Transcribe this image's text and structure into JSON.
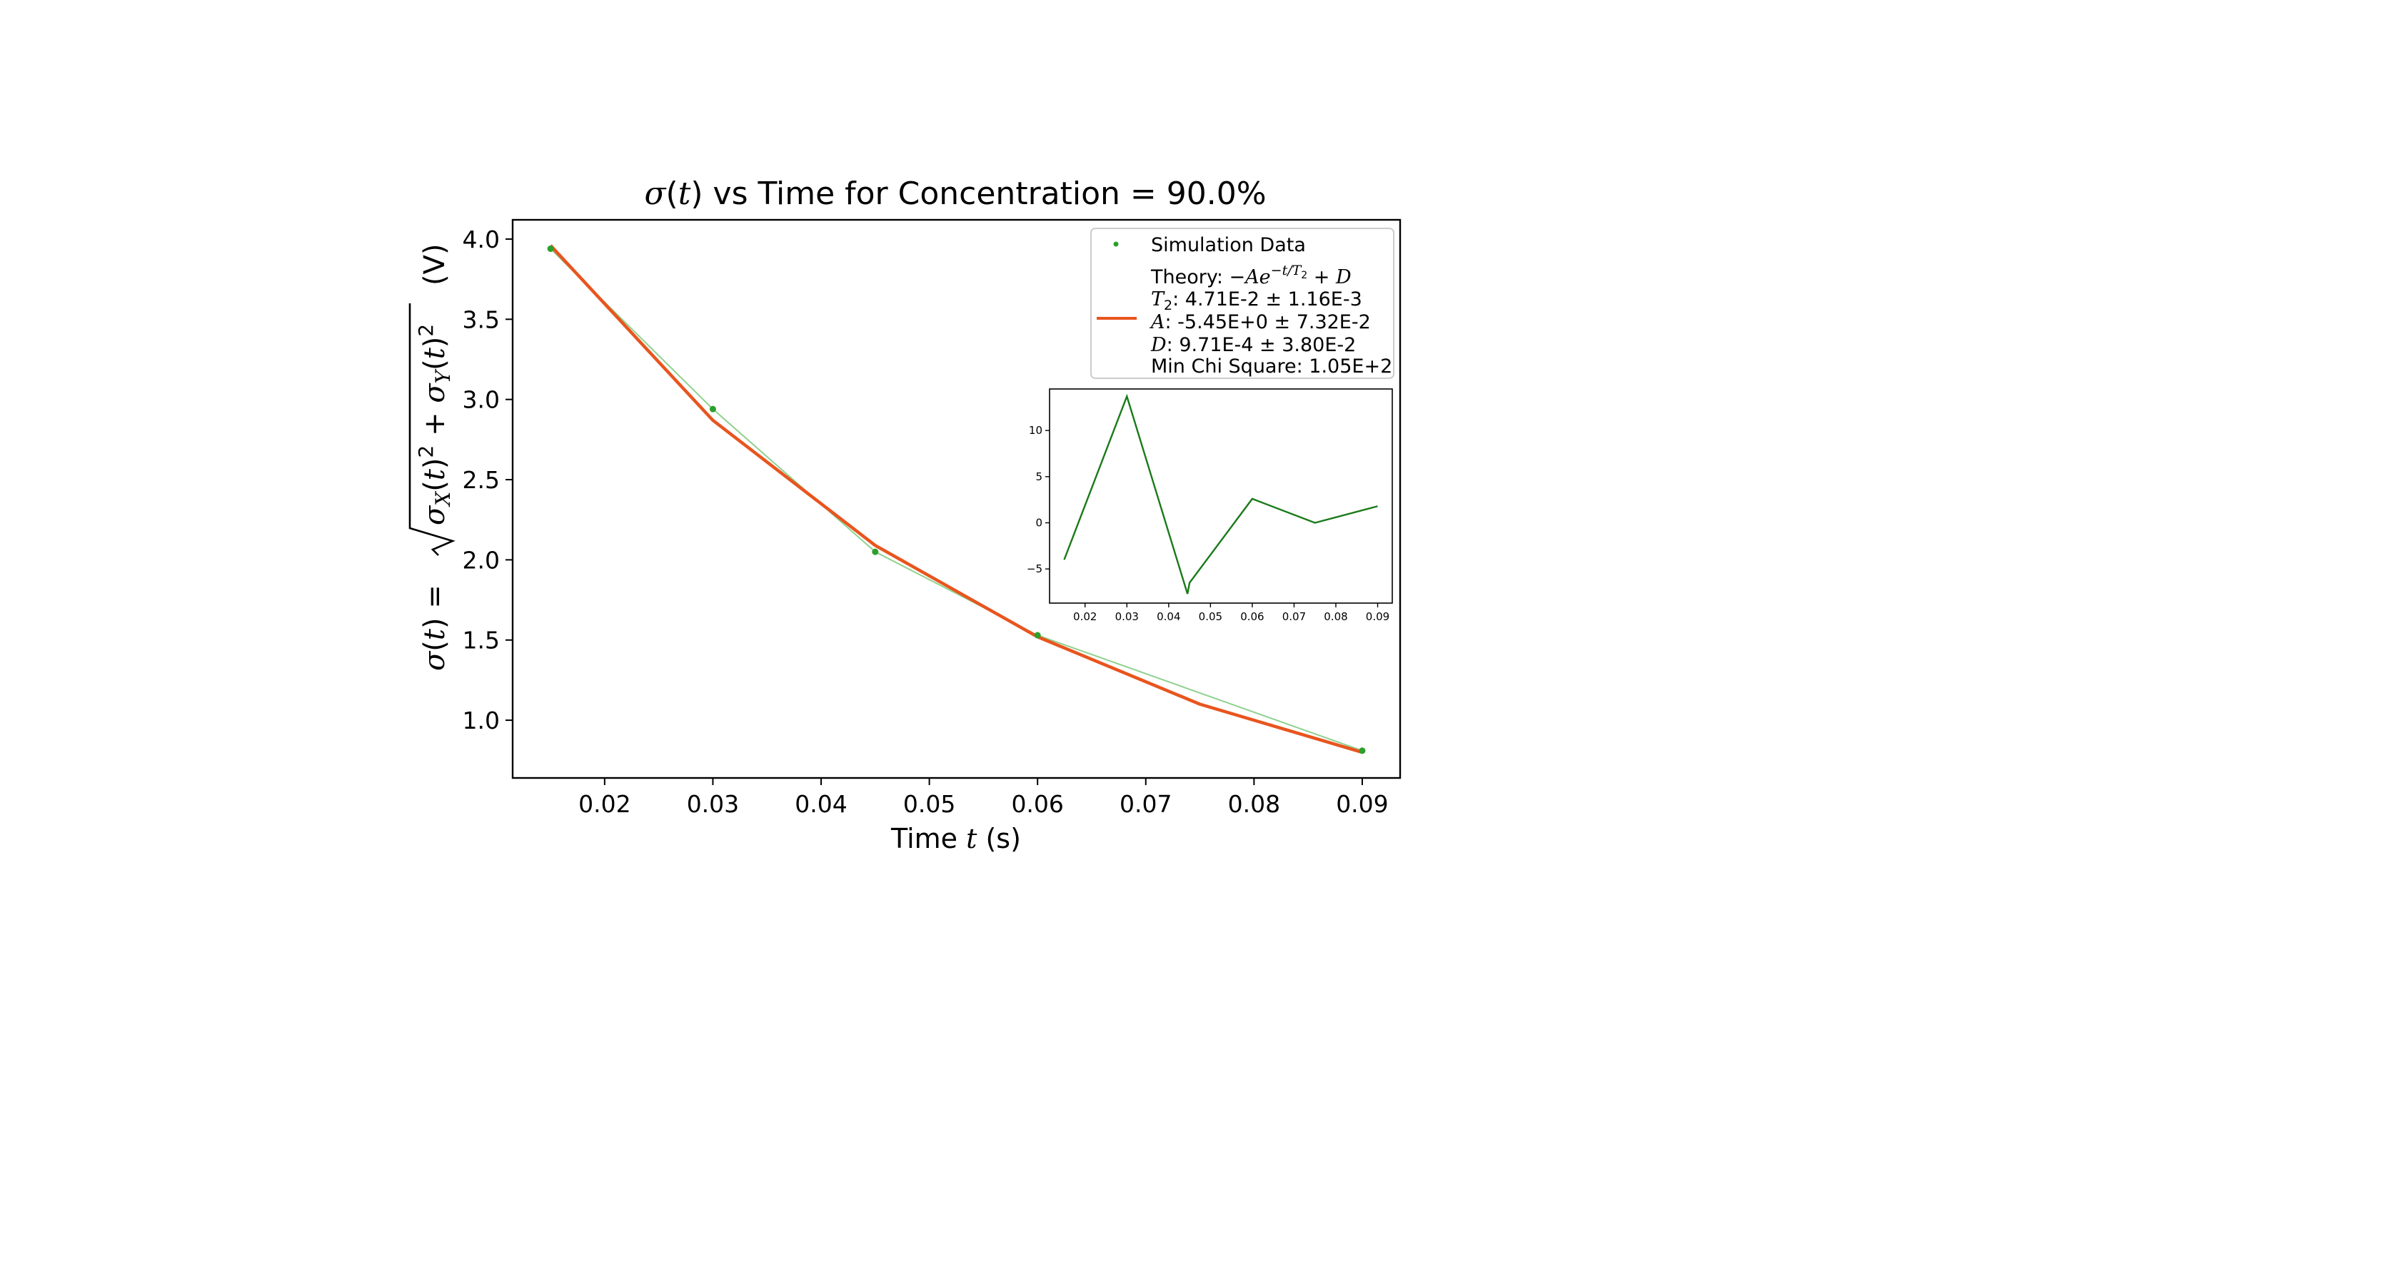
{
  "chart_data": [
    {
      "type": "line",
      "title": "σ(t) vs Time for Concentration = 90.0%",
      "title_parts": {
        "sym": "σ",
        "var": "t",
        "rest": " vs Time for Concentration = 90.0%"
      },
      "xlabel": "Time t (s)",
      "xlabel_parts": {
        "pre": "Time ",
        "var": "t",
        "post": " (s)"
      },
      "ylabel": "σ(t) = √(σX(t)² + σY(t)²) (V)",
      "xlim": [
        0.0115,
        0.0935
      ],
      "ylim": [
        0.64,
        4.12
      ],
      "xticks": [
        0.02,
        0.03,
        0.04,
        0.05,
        0.06,
        0.07,
        0.08,
        0.09
      ],
      "xtick_labels": [
        "0.02",
        "0.03",
        "0.04",
        "0.05",
        "0.06",
        "0.07",
        "0.08",
        "0.09"
      ],
      "yticks": [
        1.0,
        1.5,
        2.0,
        2.5,
        3.0,
        3.5,
        4.0
      ],
      "ytick_labels": [
        "1.0",
        "1.5",
        "2.0",
        "2.5",
        "3.0",
        "3.5",
        "4.0"
      ],
      "legend_position": "top-right",
      "series": [
        {
          "name": "Simulation Data",
          "kind": "scatter",
          "color": "#2ca02c",
          "x": [
            0.015,
            0.03,
            0.045,
            0.06,
            0.09
          ],
          "y": [
            3.94,
            2.94,
            2.05,
            1.53,
            0.81
          ]
        },
        {
          "name": "Theory",
          "kind": "line",
          "color": "#e8551f",
          "x": [
            0.015,
            0.03,
            0.045,
            0.06,
            0.075,
            0.09
          ],
          "y": [
            3.96,
            2.87,
            2.09,
            1.52,
            1.1,
            0.8
          ]
        }
      ],
      "legend": {
        "scatter_label": "Simulation Data",
        "theory_title": "Theory:",
        "theory_formula": "−Ae^(−t/T2) + D",
        "lines": [
          {
            "var": "T",
            "sub": "2",
            "text": ": 4.71E-2 ± 1.16E-3"
          },
          {
            "var": "A",
            "sub": "",
            "text": ": -5.45E+0 ± 7.32E-2"
          },
          {
            "var": "D",
            "sub": "",
            "text": ": 9.71E-4 ± 3.80E-2"
          },
          {
            "var": "",
            "sub": "",
            "text": "Min Chi Square: 1.05E+2"
          }
        ]
      }
    },
    {
      "type": "line",
      "role": "inset",
      "xlim": [
        0.0115,
        0.0935
      ],
      "ylim": [
        -8.7,
        14.5
      ],
      "xticks": [
        0.02,
        0.03,
        0.04,
        0.05,
        0.06,
        0.07,
        0.08,
        0.09
      ],
      "xtick_labels": [
        "0.02",
        "0.03",
        "0.04",
        "0.05",
        "0.06",
        "0.07",
        "0.08",
        "0.09"
      ],
      "yticks": [
        -5,
        0,
        5,
        10
      ],
      "ytick_labels": [
        "−5",
        "0",
        "5",
        "10"
      ],
      "series": [
        {
          "color": "#1a7a1a",
          "x": [
            0.015,
            0.03,
            0.0445,
            0.045,
            0.06,
            0.075,
            0.09
          ],
          "y": [
            -4.0,
            13.7,
            -7.7,
            -6.5,
            2.6,
            0.0,
            1.8
          ]
        }
      ]
    }
  ]
}
